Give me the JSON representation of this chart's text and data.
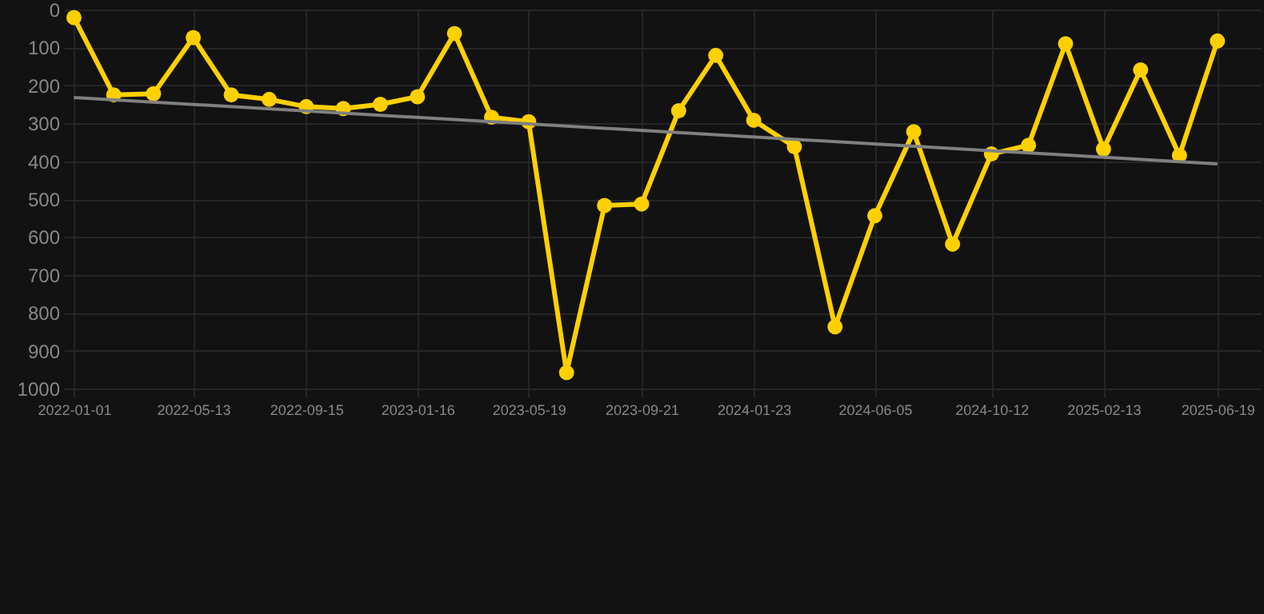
{
  "chart_data": {
    "type": "line",
    "x": [
      "2022-01-01",
      "2022-02-14",
      "2022-03-30",
      "2022-05-13",
      "2022-06-24",
      "2022-08-05",
      "2022-09-15",
      "2022-10-26",
      "2022-12-06",
      "2023-01-16",
      "2023-02-26",
      "2023-04-08",
      "2023-05-19",
      "2023-06-30",
      "2023-08-11",
      "2023-09-21",
      "2023-11-01",
      "2023-12-12",
      "2024-01-23",
      "2024-03-08",
      "2024-04-22",
      "2024-06-05",
      "2024-07-18",
      "2024-08-30",
      "2024-10-12",
      "2024-11-22",
      "2025-01-02",
      "2025-02-13",
      "2025-03-26",
      "2025-05-08",
      "2025-06-19"
    ],
    "series": [
      {
        "color": "#ffd000",
        "values": [
          21,
          225,
          222,
          74,
          225,
          237,
          256,
          261,
          250,
          230,
          63,
          284,
          296,
          958,
          517,
          513,
          267,
          121,
          292,
          362,
          837,
          544,
          322,
          619,
          381,
          358,
          90,
          368,
          159,
          385,
          83
        ]
      },
      {
        "type": "line",
        "color": "#808080",
        "marker": "none",
        "x": [
          "2022-01-01",
          "2025-06-19"
        ],
        "values": [
          232,
          407
        ]
      }
    ],
    "xlim": [
      "2021-12-21",
      "2025-08-06"
    ],
    "xticks": [
      {
        "value": "2022-01-01",
        "label": "2022-01-01"
      },
      {
        "value": "2022-05-13",
        "label": "2022-05-13"
      },
      {
        "value": "2022-09-15",
        "label": "2022-09-15"
      },
      {
        "value": "2023-01-16",
        "label": "2023-01-16"
      },
      {
        "value": "2023-05-19",
        "label": "2023-05-19"
      },
      {
        "value": "2023-09-21",
        "label": "2023-09-21"
      },
      {
        "value": "2024-01-23",
        "label": "2024-01-23"
      },
      {
        "value": "2024-06-05",
        "label": "2024-06-05"
      },
      {
        "value": "2024-10-12",
        "label": "2024-10-12"
      },
      {
        "value": "2025-02-13",
        "label": "2025-02-13"
      },
      {
        "value": "2025-06-19",
        "label": "2025-06-19"
      }
    ],
    "ylim": [
      1000,
      0
    ],
    "yticks": [
      0,
      100,
      200,
      300,
      400,
      500,
      600,
      700,
      800,
      900,
      1000
    ],
    "grid": true,
    "marker": "circle",
    "line_style": "solid"
  }
}
